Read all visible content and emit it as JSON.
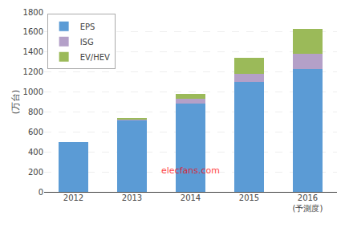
{
  "chart_data": {
    "type": "bar",
    "stacked": true,
    "categories": [
      "2012",
      "2013",
      "2014",
      "2015",
      "2016\n(予測度)"
    ],
    "series": [
      {
        "name": "EPS",
        "color": "#5b9bd5",
        "values": [
          500,
          720,
          880,
          1100,
          1230
        ]
      },
      {
        "name": "ISG",
        "color": "#b4a0c8",
        "values": [
          0,
          10,
          50,
          80,
          150
        ]
      },
      {
        "name": "EV/HEV",
        "color": "#9bba59",
        "values": [
          0,
          10,
          50,
          160,
          250
        ]
      }
    ],
    "ylabel": "(万台)",
    "ylim": [
      0,
      1800
    ],
    "yticks": [
      0,
      200,
      400,
      600,
      800,
      1000,
      1200,
      1400,
      1600,
      1800
    ],
    "grid": true,
    "legend": "upper left",
    "annotations": [
      {
        "text": "elecfans.com",
        "color": "#ff0000"
      }
    ]
  }
}
